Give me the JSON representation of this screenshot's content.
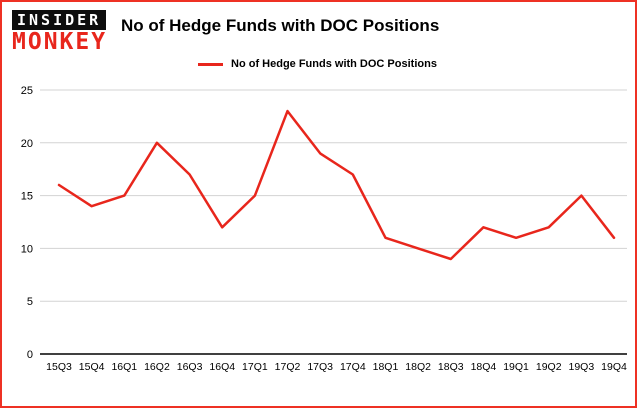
{
  "brand": {
    "logo_line1": "INSIDER",
    "logo_line2": "MONKEY",
    "logo_accent_color": "#e8261c",
    "logo_block_color": "#0d0d0d"
  },
  "header": {
    "title": "No of Hedge Funds with DOC Positions"
  },
  "legend": {
    "label": "No of Hedge Funds with DOC Positions",
    "color": "#e8261c"
  },
  "colors": {
    "border": "#ee3124",
    "line": "#e8261c",
    "grid": "#d3d3d3",
    "axis": "#000000",
    "background": "#ffffff"
  },
  "chart_data": {
    "type": "line",
    "title": "No of Hedge Funds with DOC Positions",
    "categories": [
      "15Q3",
      "15Q4",
      "16Q1",
      "16Q2",
      "16Q3",
      "16Q4",
      "17Q1",
      "17Q2",
      "17Q3",
      "17Q4",
      "18Q1",
      "18Q2",
      "18Q3",
      "18Q4",
      "19Q1",
      "19Q2",
      "19Q3",
      "19Q4"
    ],
    "values": [
      16,
      14,
      15,
      20,
      17,
      12,
      15,
      23,
      19,
      17,
      11,
      10,
      9,
      12,
      11,
      12,
      15,
      11
    ],
    "xlabel": "",
    "ylabel": "",
    "ylim": [
      0,
      25
    ],
    "yticks": [
      0,
      5,
      10,
      15,
      20,
      25
    ],
    "grid": true,
    "line_color": "#e8261c",
    "legend_position": "top-left"
  }
}
